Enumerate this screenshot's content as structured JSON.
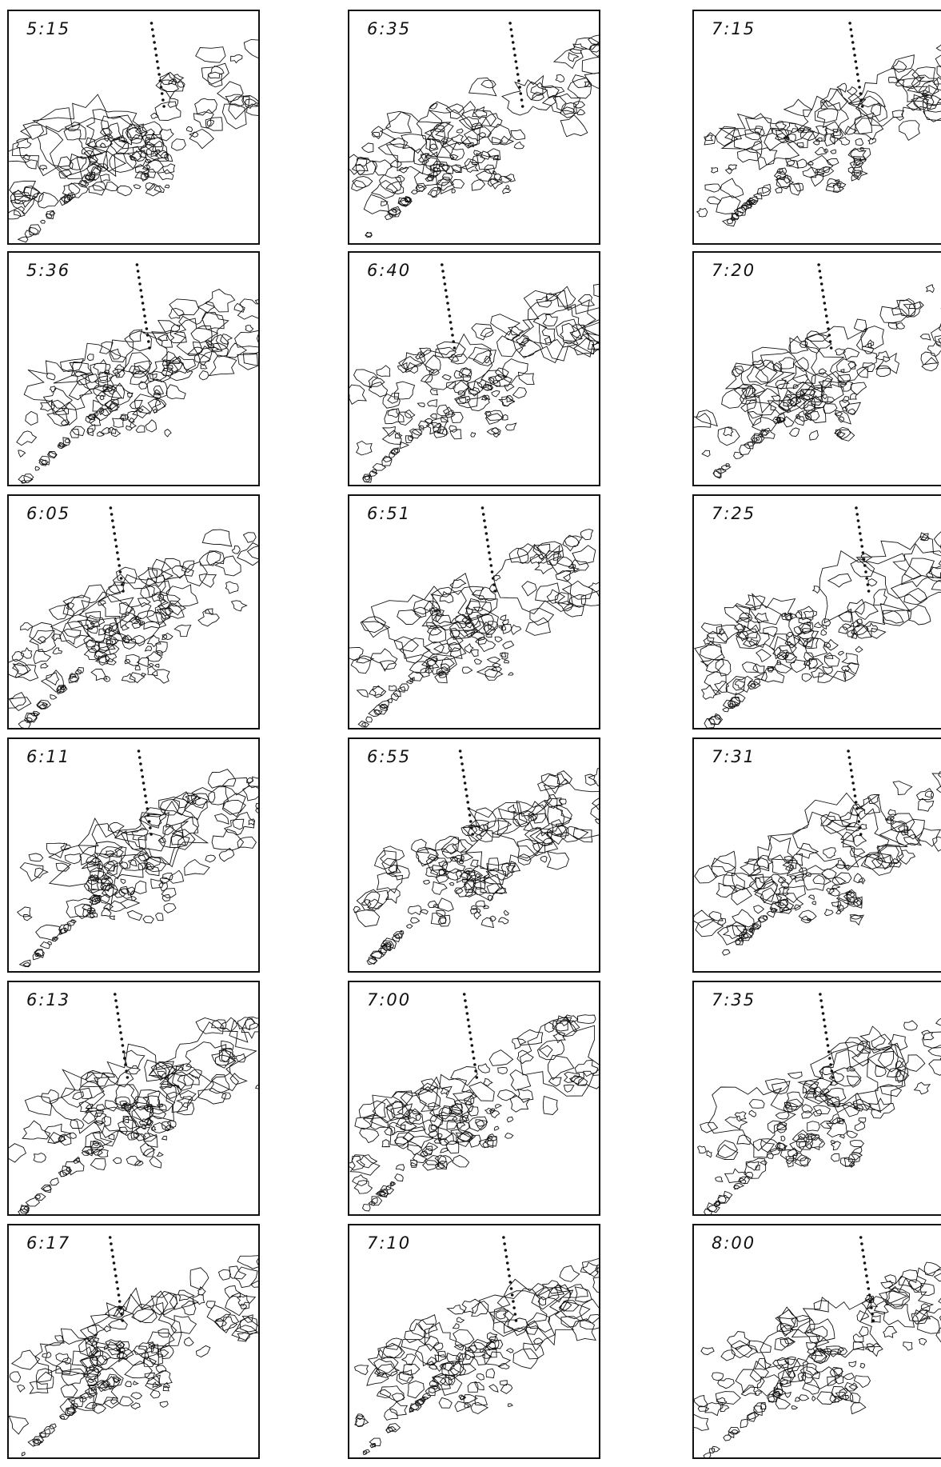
{
  "columns": [
    [
      "5:15",
      "5:36",
      "6:05",
      "6:11",
      "6:13",
      "6:17"
    ],
    [
      "6:35",
      "6:40",
      "6:51",
      "6:55",
      "7:00",
      "7:10"
    ],
    [
      "7:15",
      "7:20",
      "7:25",
      "7:31",
      "7:35",
      "8:00"
    ]
  ]
}
